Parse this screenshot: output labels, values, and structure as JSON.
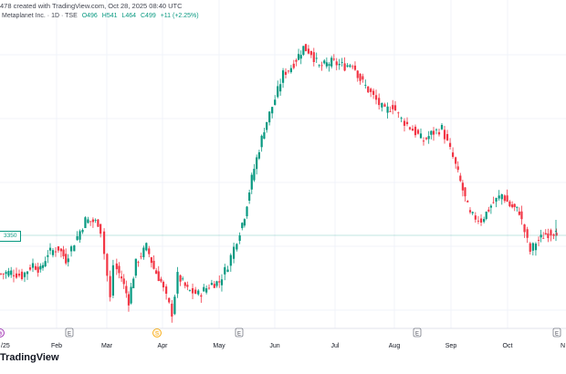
{
  "header": {
    "created_text": "478 created with TradingView.com, Oct 28, 2025 08:40 UTC",
    "symbol": "Metaplanet Inc. · 1D · TSE",
    "open": "O496",
    "high": "H541",
    "low": "L464",
    "close": "C499",
    "change": "+11 (+2.25%)"
  },
  "price_tag": "3350",
  "branding": "TradingView",
  "colors": {
    "up": "#089981",
    "down": "#f23645",
    "grid": "#f0f3fa",
    "price_line": "#089981"
  },
  "chart_data": {
    "type": "candlestick",
    "x_tick_labels": [
      "/25",
      "Feb",
      "Mar",
      "Apr",
      "May",
      "Jun",
      "Jul",
      "Aug",
      "Sep",
      "Oct",
      "N"
    ],
    "event_markers": [
      {
        "label": "E",
        "kind": "earnings"
      },
      {
        "label": "S",
        "kind": "split"
      },
      {
        "label": "E",
        "kind": "earnings"
      },
      {
        "label": "E",
        "kind": "earnings"
      },
      {
        "label": "E",
        "kind": "earnings"
      },
      {
        "label": "⊘",
        "kind": "other"
      }
    ],
    "grid": true,
    "last_bar": {
      "open": 496,
      "high": 541,
      "low": 464,
      "close": 499,
      "change": 11,
      "change_pct": 2.25
    },
    "close_path": [
      [
        "01-01",
        365
      ],
      [
        "01-08",
        370
      ],
      [
        "01-14",
        360
      ],
      [
        "01-20",
        392
      ],
      [
        "01-24",
        375
      ],
      [
        "01-28",
        425
      ],
      [
        "02-03",
        440
      ],
      [
        "02-07",
        405
      ],
      [
        "02-12",
        460
      ],
      [
        "02-18",
        540
      ],
      [
        "02-25",
        530
      ],
      [
        "02-27",
        500
      ],
      [
        "03-04",
        305
      ],
      [
        "03-06",
        390
      ],
      [
        "03-10",
        355
      ],
      [
        "03-14",
        300
      ],
      [
        "03-18",
        395
      ],
      [
        "03-24",
        445
      ],
      [
        "03-28",
        380
      ],
      [
        "04-01",
        345
      ],
      [
        "04-07",
        275
      ],
      [
        "04-10",
        360
      ],
      [
        "04-15",
        325
      ],
      [
        "04-21",
        315
      ],
      [
        "04-28",
        340
      ],
      [
        "05-02",
        345
      ],
      [
        "05-07",
        390
      ],
      [
        "05-12",
        470
      ],
      [
        "05-16",
        560
      ],
      [
        "05-20",
        730
      ],
      [
        "05-27",
        1050
      ],
      [
        "06-02",
        1300
      ],
      [
        "06-06",
        1560
      ],
      [
        "06-10",
        1640
      ],
      [
        "06-16",
        1890
      ],
      [
        "06-20",
        1820
      ],
      [
        "06-24",
        1640
      ],
      [
        "06-30",
        1700
      ],
      [
        "07-07",
        1650
      ],
      [
        "07-11",
        1690
      ],
      [
        "07-15",
        1500
      ],
      [
        "07-22",
        1320
      ],
      [
        "07-28",
        1190
      ],
      [
        "08-01",
        1240
      ],
      [
        "08-06",
        1120
      ],
      [
        "08-12",
        1040
      ],
      [
        "08-18",
        960
      ],
      [
        "08-22",
        1010
      ],
      [
        "08-28",
        1050
      ],
      [
        "09-03",
        850
      ],
      [
        "09-08",
        670
      ],
      [
        "09-12",
        560
      ],
      [
        "09-18",
        540
      ],
      [
        "09-23",
        600
      ],
      [
        "09-29",
        650
      ],
      [
        "10-03",
        600
      ],
      [
        "10-08",
        575
      ],
      [
        "10-14",
        430
      ],
      [
        "10-17",
        460
      ],
      [
        "10-22",
        488
      ],
      [
        "10-28",
        499
      ]
    ]
  }
}
